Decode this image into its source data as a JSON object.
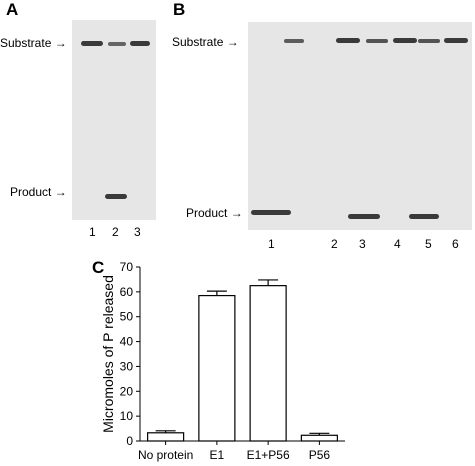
{
  "panels": {
    "A": {
      "letter": "A",
      "substrate_label": "Substrate",
      "product_label": "Product",
      "lanes": [
        "1",
        "2",
        "3"
      ]
    },
    "B": {
      "letter": "B",
      "substrate_label": "Substrate",
      "product_label": "Product",
      "lanes": [
        "1",
        "2",
        "3",
        "4",
        "5",
        "6"
      ]
    },
    "C": {
      "letter": "C"
    }
  },
  "chart_data": {
    "type": "bar",
    "categories": [
      "No protein",
      "E1",
      "E1+P56",
      "P56"
    ],
    "values": [
      3.3,
      58.5,
      62.5,
      2.3
    ],
    "errors": [
      0.8,
      1.8,
      2.3,
      0.8
    ],
    "title": "",
    "xlabel": "",
    "ylabel": "Micromoles of P released",
    "ylim": [
      0,
      70
    ],
    "yticks": [
      0,
      10,
      20,
      30,
      40,
      50,
      60,
      70
    ],
    "grid": false
  },
  "colors": {
    "gel_background": "#e6e6e6",
    "band": "#3a3a3a",
    "bar_fill": "#ffffff"
  }
}
